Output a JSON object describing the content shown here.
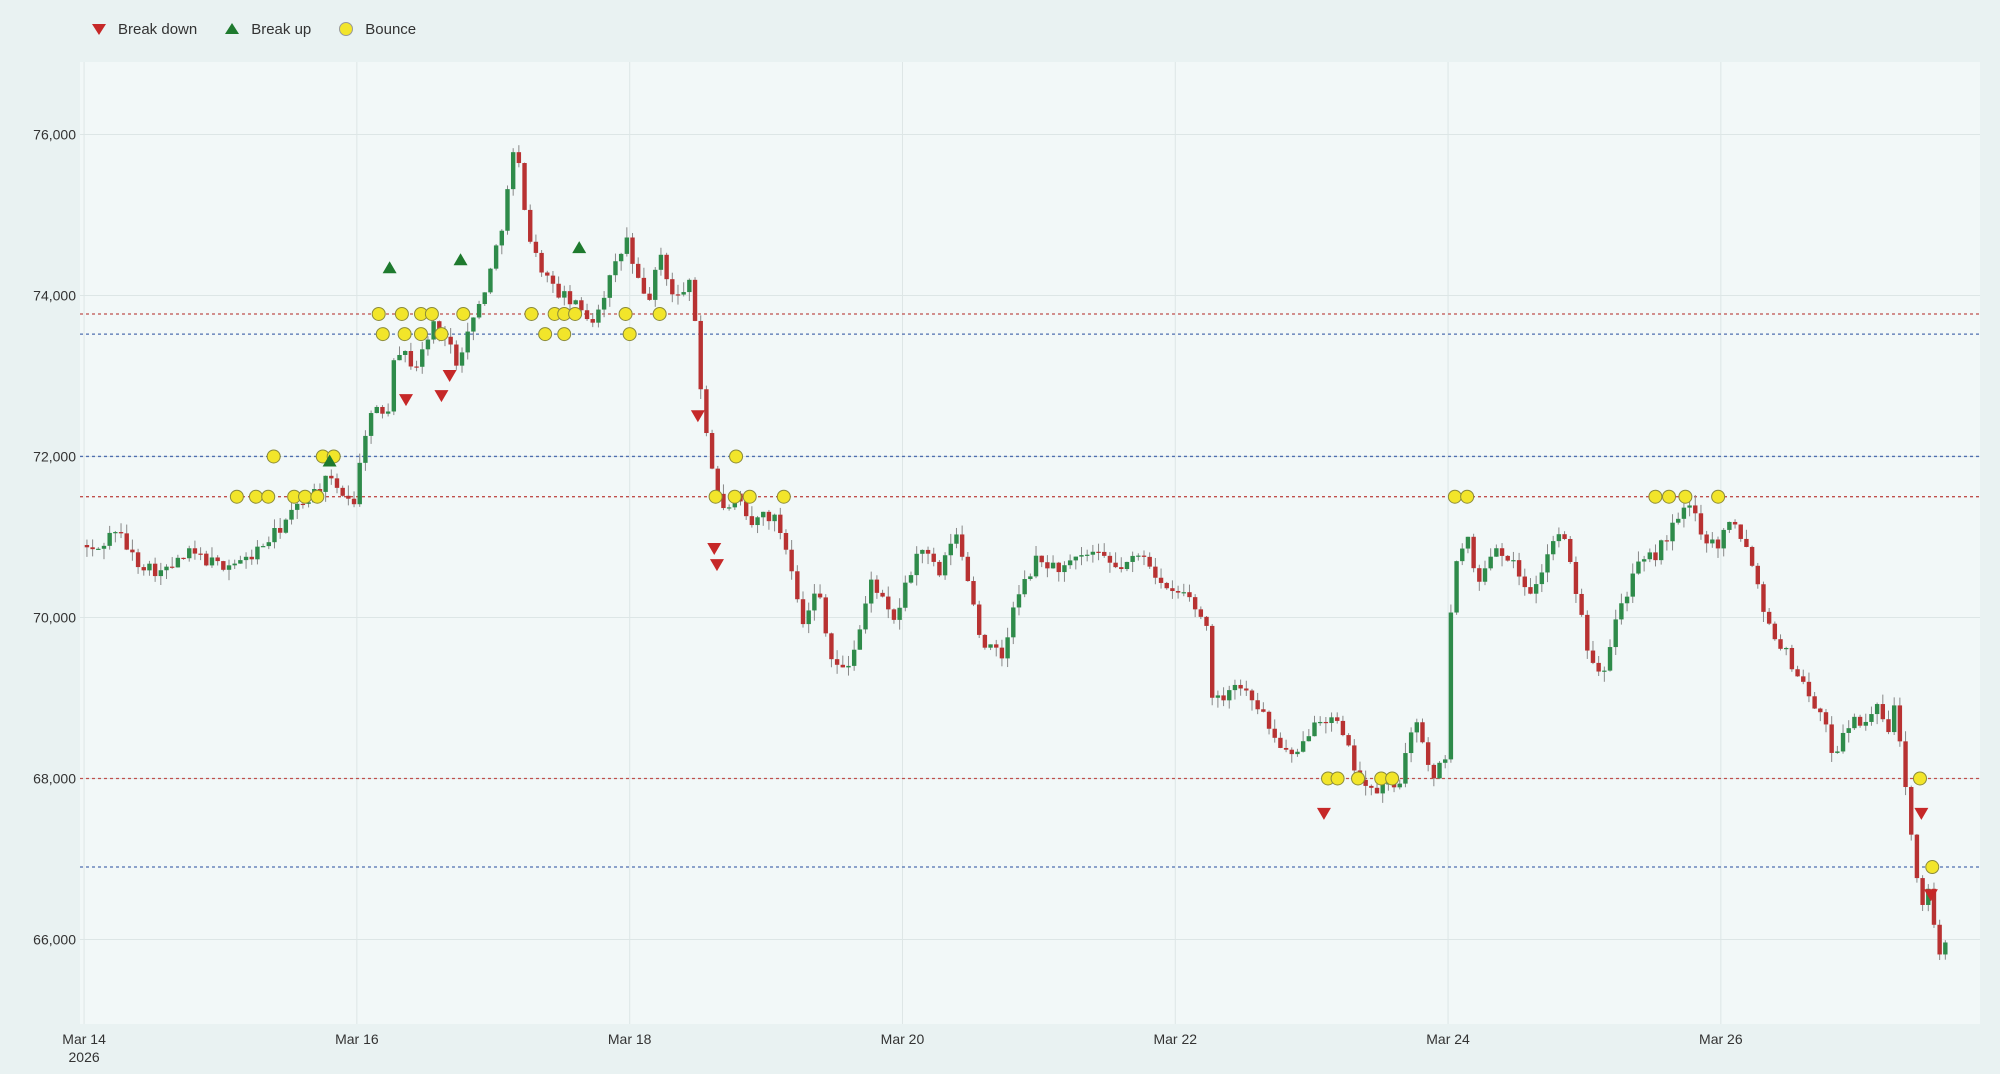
{
  "chart_data": {
    "type": "candlestick",
    "legend": {
      "placement": "top-left",
      "entries": [
        {
          "name": "Break down",
          "symbol": "triangle-down",
          "color": "#c62828"
        },
        {
          "name": "Break up",
          "symbol": "triangle-up",
          "color": "#1e7a2e"
        },
        {
          "name": "Bounce",
          "symbol": "circle",
          "color": "#f2e52a"
        }
      ]
    },
    "x_ticks": [
      {
        "day": 0,
        "label": "Mar 14",
        "sub": "2026"
      },
      {
        "day": 2,
        "label": "Mar 16"
      },
      {
        "day": 4,
        "label": "Mar 18"
      },
      {
        "day": 6,
        "label": "Mar 20"
      },
      {
        "day": 8,
        "label": "Mar 22"
      },
      {
        "day": 10,
        "label": "Mar 24"
      },
      {
        "day": 12,
        "label": "Mar 26"
      }
    ],
    "y_ticks": [
      66000,
      68000,
      70000,
      72000,
      74000,
      76000
    ],
    "xlim": [
      -0.03,
      13.9
    ],
    "ylim": [
      64950,
      76900
    ],
    "levels": [
      {
        "value": 73770,
        "color": "#c0504d"
      },
      {
        "value": 73520,
        "color": "#4f6fb0"
      },
      {
        "value": 72000,
        "color": "#4f6fb0"
      },
      {
        "value": 71500,
        "color": "#c0504d"
      },
      {
        "value": 68000,
        "color": "#c0504d"
      },
      {
        "value": 66900,
        "color": "#4f6fb0"
      }
    ],
    "colors": {
      "up": "#2e8b4a",
      "down": "#b83232",
      "wick": "#888888",
      "grid": "#dde6e6",
      "plot_bg": "#f2f8f8"
    },
    "price_path": [
      [
        0.0,
        70900
      ],
      [
        0.1,
        70800
      ],
      [
        0.25,
        71100
      ],
      [
        0.4,
        70700
      ],
      [
        0.6,
        70550
      ],
      [
        0.8,
        70800
      ],
      [
        1.0,
        70650
      ],
      [
        1.2,
        70700
      ],
      [
        1.4,
        71000
      ],
      [
        1.6,
        71400
      ],
      [
        1.8,
        71700
      ],
      [
        2.0,
        71450
      ],
      [
        2.1,
        72500
      ],
      [
        2.25,
        72600
      ],
      [
        2.3,
        73400
      ],
      [
        2.45,
        73100
      ],
      [
        2.6,
        73700
      ],
      [
        2.75,
        73200
      ],
      [
        2.9,
        73800
      ],
      [
        3.0,
        74300
      ],
      [
        3.1,
        75000
      ],
      [
        3.18,
        75900
      ],
      [
        3.3,
        74600
      ],
      [
        3.45,
        74100
      ],
      [
        3.6,
        73900
      ],
      [
        3.75,
        73700
      ],
      [
        3.9,
        74300
      ],
      [
        4.0,
        74700
      ],
      [
        4.05,
        74300
      ],
      [
        4.15,
        73900
      ],
      [
        4.25,
        74500
      ],
      [
        4.35,
        73900
      ],
      [
        4.45,
        74200
      ],
      [
        4.5,
        73700
      ],
      [
        4.55,
        72700
      ],
      [
        4.62,
        71900
      ],
      [
        4.7,
        71300
      ],
      [
        4.8,
        71500
      ],
      [
        4.9,
        71100
      ],
      [
        5.0,
        71300
      ],
      [
        5.1,
        71200
      ],
      [
        5.2,
        70700
      ],
      [
        5.3,
        69900
      ],
      [
        5.4,
        70400
      ],
      [
        5.5,
        69500
      ],
      [
        5.6,
        69300
      ],
      [
        5.7,
        69800
      ],
      [
        5.8,
        70500
      ],
      [
        5.95,
        69900
      ],
      [
        6.05,
        70400
      ],
      [
        6.15,
        70900
      ],
      [
        6.3,
        70500
      ],
      [
        6.4,
        71100
      ],
      [
        6.5,
        70500
      ],
      [
        6.6,
        69700
      ],
      [
        6.75,
        69500
      ],
      [
        6.85,
        70200
      ],
      [
        7.0,
        70700
      ],
      [
        7.2,
        70600
      ],
      [
        7.4,
        70800
      ],
      [
        7.6,
        70600
      ],
      [
        7.8,
        70800
      ],
      [
        7.95,
        70300
      ],
      [
        8.1,
        70300
      ],
      [
        8.25,
        69900
      ],
      [
        8.3,
        68900
      ],
      [
        8.45,
        69200
      ],
      [
        8.6,
        69000
      ],
      [
        8.75,
        68500
      ],
      [
        8.9,
        68200
      ],
      [
        9.05,
        68800
      ],
      [
        9.2,
        68700
      ],
      [
        9.35,
        68100
      ],
      [
        9.45,
        67800
      ],
      [
        9.55,
        67900
      ],
      [
        9.65,
        67900
      ],
      [
        9.8,
        68800
      ],
      [
        9.9,
        67900
      ],
      [
        10.0,
        68300
      ],
      [
        10.05,
        70400
      ],
      [
        10.15,
        71100
      ],
      [
        10.25,
        70400
      ],
      [
        10.35,
        70900
      ],
      [
        10.45,
        70800
      ],
      [
        10.55,
        70500
      ],
      [
        10.65,
        70300
      ],
      [
        10.75,
        70800
      ],
      [
        10.85,
        71100
      ],
      [
        10.95,
        70400
      ],
      [
        11.05,
        69600
      ],
      [
        11.15,
        69300
      ],
      [
        11.25,
        70000
      ],
      [
        11.4,
        70600
      ],
      [
        11.55,
        70800
      ],
      [
        11.7,
        71200
      ],
      [
        11.8,
        71400
      ],
      [
        11.9,
        71000
      ],
      [
        12.0,
        70900
      ],
      [
        12.1,
        71300
      ],
      [
        12.25,
        70700
      ],
      [
        12.35,
        70000
      ],
      [
        12.45,
        69700
      ],
      [
        12.55,
        69400
      ],
      [
        12.65,
        69100
      ],
      [
        12.75,
        68800
      ],
      [
        12.85,
        68300
      ],
      [
        12.95,
        68700
      ],
      [
        13.05,
        68700
      ],
      [
        13.15,
        68900
      ],
      [
        13.25,
        68600
      ],
      [
        13.3,
        68900
      ],
      [
        13.38,
        67900
      ],
      [
        13.45,
        66900
      ],
      [
        13.5,
        66500
      ],
      [
        13.55,
        66600
      ],
      [
        13.62,
        65800
      ],
      [
        13.66,
        66000
      ]
    ],
    "markers": {
      "break_down": [
        [
          2.36,
          72700
        ],
        [
          2.62,
          72750
        ],
        [
          2.68,
          73000
        ],
        [
          4.5,
          72500
        ],
        [
          4.62,
          70850
        ],
        [
          4.64,
          70650
        ],
        [
          9.09,
          67560
        ],
        [
          13.47,
          67560
        ],
        [
          13.54,
          66550
        ]
      ],
      "break_up": [
        [
          2.24,
          74350
        ],
        [
          2.76,
          74450
        ],
        [
          3.63,
          74600
        ],
        [
          1.8,
          71950
        ]
      ],
      "bounce": [
        [
          1.12,
          71500
        ],
        [
          1.26,
          71500
        ],
        [
          1.35,
          71500
        ],
        [
          1.39,
          72000
        ],
        [
          1.54,
          71500
        ],
        [
          1.62,
          71500
        ],
        [
          1.71,
          71500
        ],
        [
          1.75,
          72000
        ],
        [
          1.83,
          72000
        ],
        [
          2.16,
          73770
        ],
        [
          2.19,
          73520
        ],
        [
          2.33,
          73770
        ],
        [
          2.35,
          73520
        ],
        [
          2.47,
          73770
        ],
        [
          2.47,
          73520
        ],
        [
          2.55,
          73770
        ],
        [
          2.62,
          73520
        ],
        [
          2.78,
          73770
        ],
        [
          3.28,
          73770
        ],
        [
          3.38,
          73520
        ],
        [
          3.45,
          73770
        ],
        [
          3.52,
          73770
        ],
        [
          3.52,
          73520
        ],
        [
          3.6,
          73770
        ],
        [
          3.97,
          73770
        ],
        [
          4.0,
          73520
        ],
        [
          4.22,
          73770
        ],
        [
          4.63,
          71500
        ],
        [
          4.77,
          71500
        ],
        [
          4.78,
          72000
        ],
        [
          4.88,
          71500
        ],
        [
          5.13,
          71500
        ],
        [
          9.12,
          68000
        ],
        [
          9.19,
          68000
        ],
        [
          9.34,
          68000
        ],
        [
          9.51,
          68000
        ],
        [
          9.59,
          68000
        ],
        [
          10.05,
          71500
        ],
        [
          10.14,
          71500
        ],
        [
          11.52,
          71500
        ],
        [
          11.62,
          71500
        ],
        [
          11.74,
          71500
        ],
        [
          11.98,
          71500
        ],
        [
          13.46,
          68000
        ],
        [
          13.55,
          66900
        ]
      ]
    }
  }
}
